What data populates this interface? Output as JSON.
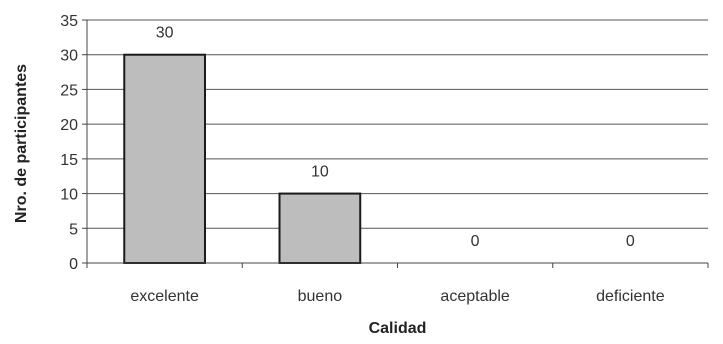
{
  "chart_data": {
    "type": "bar",
    "categories": [
      "excelente",
      "bueno",
      "aceptable",
      "deficiente"
    ],
    "values": [
      30,
      10,
      0,
      0
    ],
    "data_labels": [
      "30",
      "10",
      "0",
      "0"
    ],
    "xlabel": "Calidad",
    "ylabel": "Nro. de participantes",
    "ylim": [
      0,
      35
    ],
    "yticks": [
      0,
      5,
      10,
      15,
      20,
      25,
      30,
      35
    ],
    "grid": true,
    "legend": "none",
    "bar_color": "#bdbdbd",
    "bar_edge_color": "#1a1a1a"
  }
}
